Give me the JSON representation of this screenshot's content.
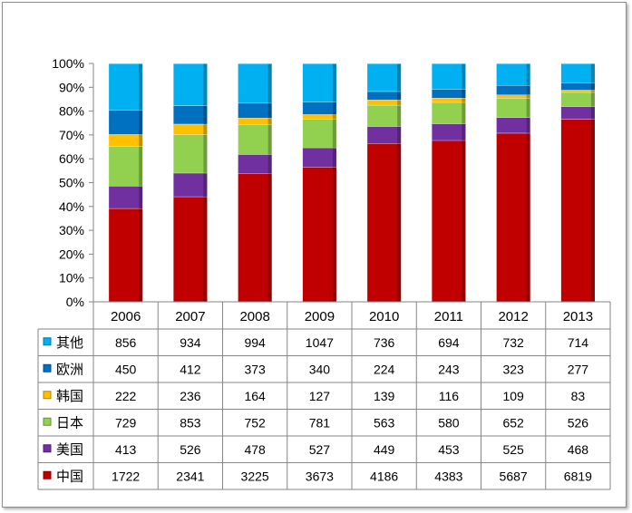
{
  "chart_data": {
    "type": "bar",
    "stacked": "percent",
    "categories": [
      "2006",
      "2007",
      "2008",
      "2009",
      "2010",
      "2011",
      "2012",
      "2013"
    ],
    "ylim": [
      0,
      100
    ],
    "ytick_labels": [
      "0%",
      "10%",
      "20%",
      "30%",
      "40%",
      "50%",
      "60%",
      "70%",
      "80%",
      "90%",
      "100%"
    ],
    "series": [
      {
        "name": "中国",
        "color": "#c00000",
        "values": [
          1722,
          2341,
          3225,
          3673,
          4186,
          4383,
          5687,
          6819
        ]
      },
      {
        "name": "美国",
        "color": "#7030a0",
        "values": [
          413,
          526,
          478,
          527,
          449,
          453,
          525,
          468
        ]
      },
      {
        "name": "日本",
        "color": "#92d050",
        "values": [
          729,
          853,
          752,
          781,
          563,
          580,
          652,
          526
        ]
      },
      {
        "name": "韩国",
        "color": "#ffc000",
        "values": [
          222,
          236,
          164,
          127,
          139,
          116,
          109,
          83
        ]
      },
      {
        "name": "欧洲",
        "color": "#0070c0",
        "values": [
          450,
          412,
          373,
          340,
          224,
          243,
          323,
          277
        ]
      },
      {
        "name": "其他",
        "color": "#00b0f0",
        "values": [
          856,
          934,
          994,
          1047,
          736,
          694,
          732,
          714
        ]
      }
    ],
    "table_row_order": [
      "其他",
      "欧洲",
      "韩国",
      "日本",
      "美国",
      "中国"
    ],
    "data_table": true,
    "legend": "in data table"
  }
}
